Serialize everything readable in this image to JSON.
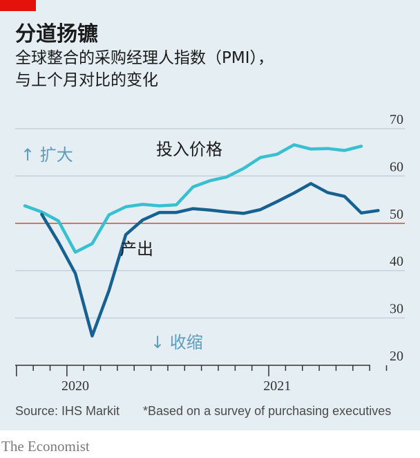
{
  "header": {
    "title": "分道扬镳",
    "subtitle_line1": "全球整合的采购经理人指数（PMI），",
    "subtitle_line2": "与上个月对比的变化"
  },
  "chart_data": {
    "type": "line",
    "ylim": [
      20,
      70
    ],
    "yticks": [
      20,
      30,
      40,
      50,
      60,
      70
    ],
    "ytick_labels": [
      "20",
      "30",
      "40",
      "50",
      "60",
      "70"
    ],
    "x_labels": [
      "2020",
      "2021"
    ],
    "x_months": [
      "2019-10",
      "2019-11",
      "2019-12",
      "2020-01",
      "2020-02",
      "2020-03",
      "2020-04",
      "2020-05",
      "2020-06",
      "2020-07",
      "2020-08",
      "2020-09",
      "2020-10",
      "2020-11",
      "2020-12",
      "2021-01",
      "2021-02",
      "2021-03",
      "2021-04",
      "2021-05",
      "2021-06",
      "2021-07",
      "2021-08"
    ],
    "reference_line": 50,
    "annotations": {
      "expand": "↑ 扩大",
      "contract": "↓ 收缩"
    },
    "series": [
      {
        "name": "投入价格",
        "color": "#38bfd0",
        "x": [
          "2019-10",
          "2019-11",
          "2019-12",
          "2020-01",
          "2020-02",
          "2020-03",
          "2020-04",
          "2020-05",
          "2020-06",
          "2020-07",
          "2020-08",
          "2020-09",
          "2020-10",
          "2020-11",
          "2020-12",
          "2021-01",
          "2021-02",
          "2021-03",
          "2021-04",
          "2021-05",
          "2021-06",
          "2021-07",
          "2021-08"
        ],
        "values": [
          53.7,
          52.4,
          50.5,
          43.9,
          45.7,
          51.8,
          53.5,
          54.0,
          53.7,
          53.9,
          57.7,
          59.0,
          59.8,
          61.6,
          63.9,
          64.6,
          66.6,
          65.7,
          65.8,
          65.4,
          66.3,
          null,
          null
        ]
      },
      {
        "name": "产出",
        "color": "#176192",
        "x": [
          "2019-11",
          "2019-12",
          "2020-01",
          "2020-02",
          "2020-03",
          "2020-04",
          "2020-05",
          "2020-06",
          "2020-07",
          "2020-08",
          "2020-09",
          "2020-10",
          "2020-11",
          "2020-12",
          "2021-01",
          "2021-02",
          "2021-03",
          "2021-04",
          "2021-05",
          "2021-06",
          "2021-07"
        ],
        "values": [
          51.9,
          46.0,
          39.4,
          26.2,
          35.8,
          47.6,
          50.7,
          52.3,
          52.3,
          53.1,
          52.8,
          52.4,
          52.1,
          52.9,
          54.6,
          56.4,
          58.4,
          56.5,
          55.7,
          52.2,
          52.7
        ]
      }
    ]
  },
  "footer": {
    "source": "Source: IHS Markit",
    "note": "*Based on a survey of purchasing executives",
    "brand": "The Economist"
  },
  "colors": {
    "background": "#e5eef3",
    "accent_red": "#e3120b",
    "input_prices": "#38bfd0",
    "output": "#176192",
    "grid": "#c4d0d8",
    "reference": "#d7473f",
    "annotation": "#5e9cba"
  }
}
